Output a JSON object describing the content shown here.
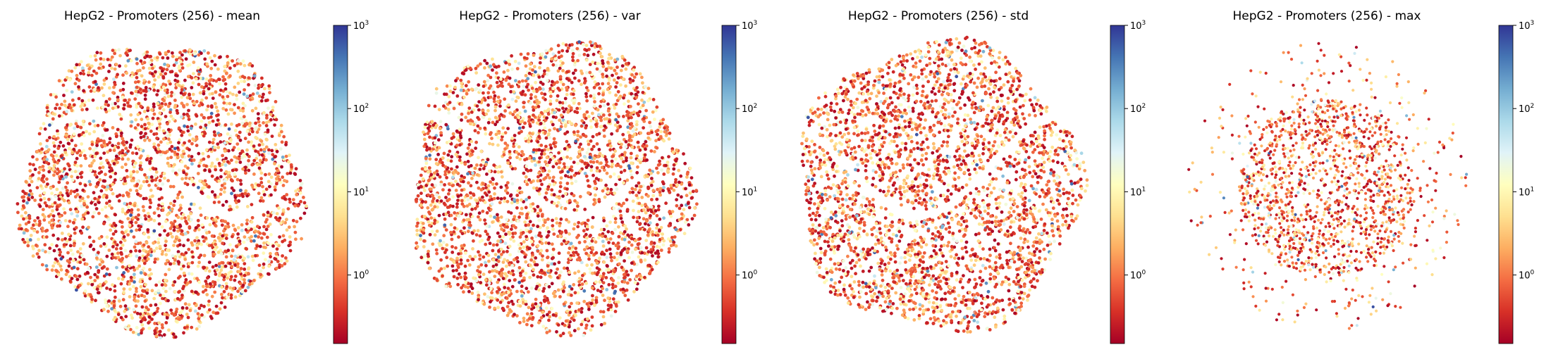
{
  "figure": {
    "colors": {
      "colormap": "RdYlBu",
      "stops": [
        "#a50026",
        "#d73027",
        "#f46d43",
        "#fdae61",
        "#fee090",
        "#ffffbf",
        "#e0f3f8",
        "#abd9e9",
        "#74add1",
        "#4575b4",
        "#313695"
      ],
      "background": "#ffffff"
    }
  },
  "chart_data": [
    {
      "type": "scatter",
      "title": "HepG2 - Promoters (256) - mean",
      "colorbar": {
        "scale": "log",
        "range": [
          0.15,
          1000
        ],
        "ticks": [
          {
            "base": "10",
            "exp": "0",
            "value": 1
          },
          {
            "base": "10",
            "exp": "1",
            "value": 10
          },
          {
            "base": "10",
            "exp": "2",
            "value": 100
          },
          {
            "base": "10",
            "exp": "3",
            "value": 1000
          }
        ]
      },
      "axes_visible": false,
      "grid": false
    },
    {
      "type": "scatter",
      "title": "HepG2 - Promoters (256) - var",
      "colorbar": {
        "scale": "log",
        "range": [
          0.15,
          1000
        ],
        "ticks": [
          {
            "base": "10",
            "exp": "0",
            "value": 1
          },
          {
            "base": "10",
            "exp": "1",
            "value": 10
          },
          {
            "base": "10",
            "exp": "2",
            "value": 100
          },
          {
            "base": "10",
            "exp": "3",
            "value": 1000
          }
        ]
      },
      "axes_visible": false,
      "grid": false
    },
    {
      "type": "scatter",
      "title": "HepG2 - Promoters (256) - std",
      "colorbar": {
        "scale": "log",
        "range": [
          0.15,
          1000
        ],
        "ticks": [
          {
            "base": "10",
            "exp": "0",
            "value": 1
          },
          {
            "base": "10",
            "exp": "1",
            "value": 10
          },
          {
            "base": "10",
            "exp": "2",
            "value": 100
          },
          {
            "base": "10",
            "exp": "3",
            "value": 1000
          }
        ]
      },
      "axes_visible": false,
      "grid": false
    },
    {
      "type": "scatter",
      "title": "HepG2 - Promoters (256) - max",
      "colorbar": {
        "scale": "log",
        "range": [
          0.15,
          1000
        ],
        "ticks": [
          {
            "base": "10",
            "exp": "0",
            "value": 1
          },
          {
            "base": "10",
            "exp": "1",
            "value": 10
          },
          {
            "base": "10",
            "exp": "2",
            "value": 100
          },
          {
            "base": "10",
            "exp": "3",
            "value": 1000
          }
        ]
      },
      "axes_visible": false,
      "grid": false
    }
  ]
}
